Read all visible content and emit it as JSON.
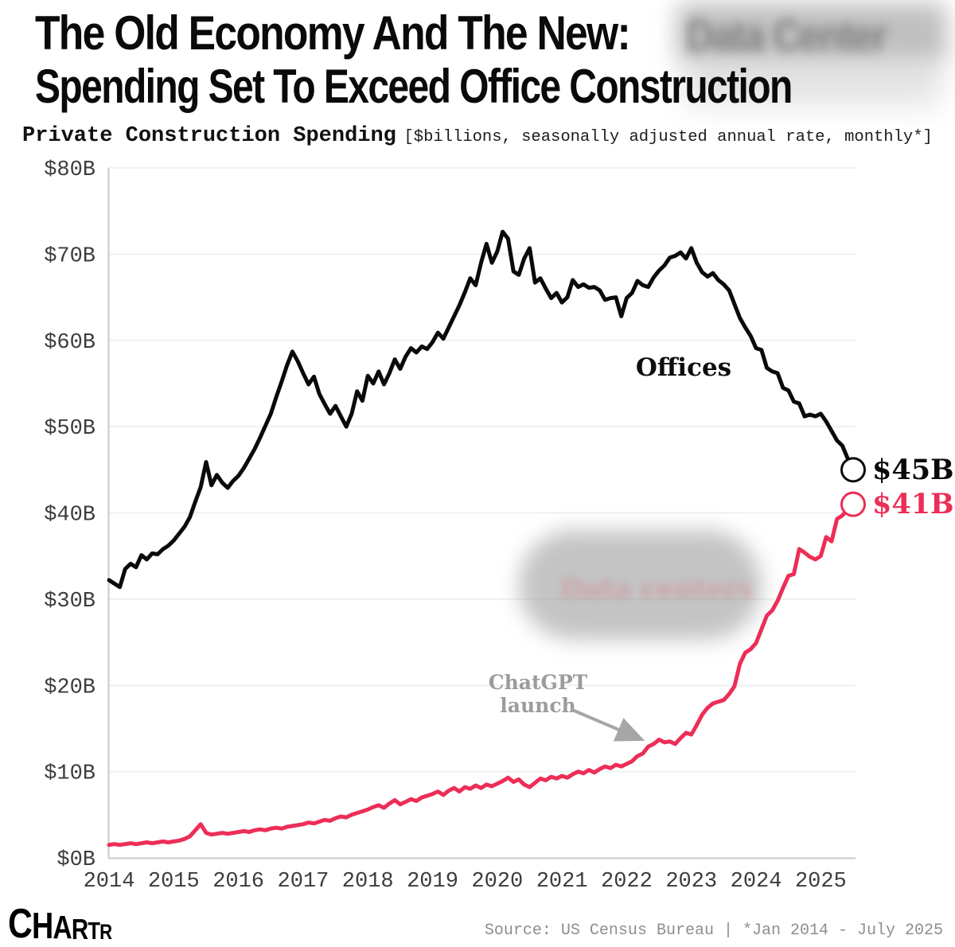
{
  "header": {
    "title_line1": "The Old Economy And The New:",
    "title_line2": "Spending Set To Exceed Office Construction",
    "title_redacted_ghost": "Data Center",
    "subtitle_bold": "Private Construction Spending",
    "subtitle_note": "[$billions, seasonally adjusted annual rate, monthly*]"
  },
  "labels": {
    "offices_series": "Offices",
    "offices_end": "$45B",
    "datacenters_end": "$41B",
    "annotation_line1": "ChatGPT",
    "annotation_line2": "launch",
    "chart_redacted_ghost": "Data centers"
  },
  "footer": {
    "logo": "CHARTR",
    "source": "Source: US Census Bureau | *Jan 2014 - July 2025"
  },
  "chart_data": {
    "type": "line",
    "title": "Private Construction Spending",
    "units": "$billions, seasonally adjusted annual rate, monthly",
    "x_monthly_start": "2014-01",
    "x_monthly_end": "2025-07",
    "x_tick_labels": [
      "2014",
      "2015",
      "2016",
      "2017",
      "2018",
      "2019",
      "2020",
      "2021",
      "2022",
      "2023",
      "2024",
      "2025"
    ],
    "y_tick_values": [
      0,
      10,
      20,
      30,
      40,
      50,
      60,
      70,
      80
    ],
    "y_tick_labels": [
      "$0B",
      "$10B",
      "$20B",
      "$30B",
      "$40B",
      "$50B",
      "$60B",
      "$70B",
      "$80B"
    ],
    "ylim": [
      0,
      80
    ],
    "grid": "horizontal-faint",
    "legend_position": "inline-labels",
    "annotation": {
      "text": "ChatGPT launch",
      "arrow_points_to_month": "2022-11"
    },
    "redactions": [
      {
        "area": "title-after-colon",
        "ghost_text": "Data Center"
      },
      {
        "area": "pink-series-label",
        "ghost_text": "Data centers"
      }
    ],
    "series": [
      {
        "name": "Offices",
        "color": "#0a0a0a",
        "end_value_label": "$45B",
        "values": [
          32.2,
          31.8,
          31.4,
          33.5,
          34.1,
          33.7,
          35.1,
          34.6,
          35.3,
          35.2,
          35.8,
          36.2,
          36.8,
          37.6,
          38.4,
          39.5,
          41.3,
          43.0,
          45.9,
          43.2,
          44.4,
          43.5,
          42.9,
          43.7,
          44.3,
          45.2,
          46.3,
          47.4,
          48.7,
          50.1,
          51.5,
          53.4,
          55.2,
          57.1,
          58.7,
          57.6,
          56.2,
          54.9,
          55.8,
          53.8,
          52.6,
          51.5,
          52.4,
          51.2,
          50.0,
          51.5,
          54.1,
          53.0,
          55.9,
          55.0,
          56.4,
          54.9,
          56.2,
          57.8,
          56.7,
          58.1,
          59.1,
          58.6,
          59.3,
          59.0,
          59.8,
          60.9,
          60.2,
          61.5,
          62.8,
          64.1,
          65.6,
          67.2,
          66.4,
          69.0,
          71.2,
          69.0,
          70.3,
          72.6,
          71.8,
          68.0,
          67.6,
          69.5,
          70.7,
          66.7,
          67.2,
          66.0,
          64.9,
          65.5,
          64.4,
          65.0,
          67.0,
          66.2,
          66.5,
          66.1,
          66.2,
          65.8,
          64.7,
          64.9,
          65.0,
          62.8,
          64.9,
          65.5,
          66.9,
          66.4,
          66.2,
          67.3,
          68.1,
          68.7,
          69.6,
          69.8,
          70.2,
          69.5,
          70.7,
          69.0,
          67.9,
          67.4,
          67.8,
          67.0,
          66.5,
          65.8,
          64.2,
          62.6,
          61.5,
          60.5,
          59.1,
          58.9,
          56.8,
          56.4,
          56.2,
          54.5,
          54.2,
          52.9,
          52.7,
          51.2,
          51.4,
          51.2,
          51.5,
          50.6,
          49.5,
          48.4,
          47.8,
          46.3,
          45.0
        ]
      },
      {
        "name": "Data centers",
        "color": "#ed2e57",
        "end_value_label": "$41B",
        "values": [
          1.5,
          1.6,
          1.5,
          1.6,
          1.7,
          1.6,
          1.7,
          1.8,
          1.7,
          1.8,
          1.9,
          1.8,
          1.9,
          2.0,
          2.2,
          2.5,
          3.2,
          3.9,
          2.9,
          2.7,
          2.8,
          2.9,
          2.8,
          2.9,
          3.0,
          3.1,
          3.0,
          3.2,
          3.3,
          3.2,
          3.4,
          3.5,
          3.4,
          3.6,
          3.7,
          3.8,
          3.9,
          4.1,
          4.0,
          4.2,
          4.4,
          4.3,
          4.6,
          4.8,
          4.7,
          5.0,
          5.2,
          5.4,
          5.6,
          5.9,
          6.1,
          5.8,
          6.3,
          6.7,
          6.2,
          6.5,
          6.8,
          6.6,
          7.0,
          7.2,
          7.4,
          7.7,
          7.3,
          7.8,
          8.1,
          7.7,
          8.2,
          8.0,
          8.4,
          8.1,
          8.5,
          8.3,
          8.6,
          8.9,
          9.3,
          8.8,
          9.1,
          8.5,
          8.2,
          8.7,
          9.2,
          9.0,
          9.4,
          9.2,
          9.5,
          9.3,
          9.7,
          10.0,
          9.8,
          10.2,
          9.9,
          10.3,
          10.6,
          10.4,
          10.8,
          10.6,
          10.9,
          11.2,
          11.8,
          12.1,
          12.9,
          13.2,
          13.7,
          13.4,
          13.5,
          13.2,
          13.9,
          14.5,
          14.3,
          15.4,
          16.6,
          17.4,
          17.9,
          18.1,
          18.3,
          19.0,
          19.9,
          22.5,
          23.8,
          24.2,
          24.9,
          26.5,
          28.1,
          28.7,
          29.8,
          31.3,
          32.7,
          32.9,
          35.8,
          35.4,
          34.9,
          34.6,
          35.0,
          37.2,
          36.7,
          39.3,
          39.7,
          40.4,
          41.0
        ]
      }
    ]
  }
}
